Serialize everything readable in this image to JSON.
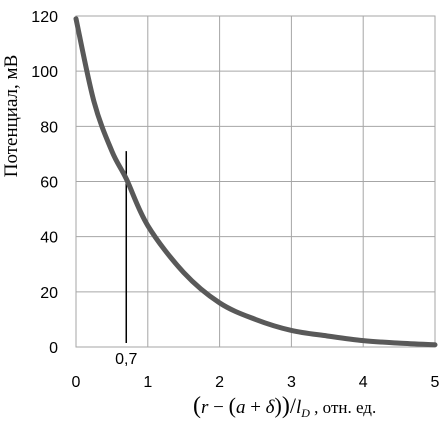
{
  "chart_data": {
    "type": "line",
    "title": "",
    "ylabel": "Потенциал, мВ",
    "xlabel": "(r − (a + δ))/l_D , отн. ед.",
    "xlabel_parts": {
      "open": "(",
      "r": "r",
      "minus1": " − ",
      "inner_open": "(",
      "a": "a",
      "plus": " + ",
      "delta": "δ",
      "inner_close": ")",
      "close": ")",
      "slash": "/",
      "l": "l",
      "sub": "D",
      "unit": " ,  отн. ед."
    },
    "xlim": [
      0,
      5
    ],
    "ylim": [
      0,
      120
    ],
    "x_ticks": [
      "0",
      "1",
      "2",
      "3",
      "4",
      "5"
    ],
    "y_ticks": [
      "0",
      "20",
      "40",
      "60",
      "80",
      "100",
      "120"
    ],
    "grid": true,
    "line_color": "#595959",
    "series": [
      {
        "x": [
          0,
          0.25,
          0.5,
          0.7,
          1.0,
          1.5,
          2.0,
          2.5,
          3.0,
          3.5,
          4.0,
          4.5,
          5.0
        ],
        "y": [
          119,
          89,
          71,
          61,
          44,
          27,
          16,
          10,
          6,
          4,
          2.3,
          1.4,
          0.8
        ]
      }
    ],
    "annotations": [
      {
        "label": "0,7",
        "x": 0.7,
        "y_top": 71
      }
    ]
  }
}
